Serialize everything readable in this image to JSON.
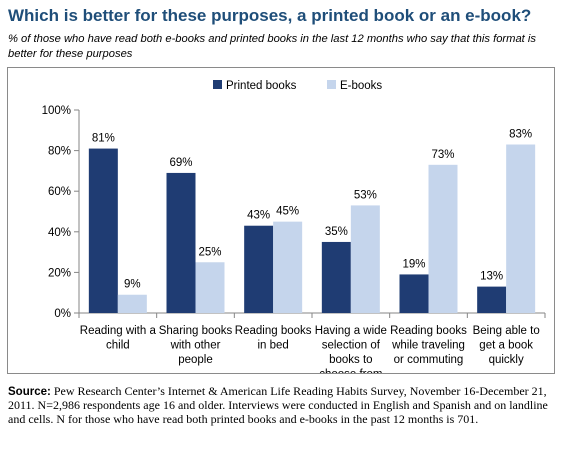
{
  "header": {
    "title": "Which is better for these purposes, a printed book or an e-book?",
    "subtitle": "% of those who have read both e-books and printed books in the last 12 months who say that this format is better for these purposes"
  },
  "chart_data": {
    "type": "bar",
    "categories": [
      [
        "Reading with a",
        "child"
      ],
      [
        "Sharing books",
        "with other",
        "people"
      ],
      [
        "Reading books",
        "in bed"
      ],
      [
        "Having a wide",
        "selection of",
        "books to",
        "choose from"
      ],
      [
        "Reading books",
        "while traveling",
        "or commuting"
      ],
      [
        "Being able to",
        "get a book",
        "quickly"
      ]
    ],
    "series": [
      {
        "name": "Printed books",
        "color": "#1f3c73",
        "values": [
          81,
          69,
          43,
          35,
          19,
          13
        ]
      },
      {
        "name": "E-books",
        "color": "#c5d5ec",
        "values": [
          9,
          25,
          45,
          53,
          73,
          83
        ]
      }
    ],
    "ylim": [
      0,
      100
    ],
    "yticks": [
      0,
      20,
      40,
      60,
      80,
      100
    ],
    "ytick_suffix": "%",
    "data_label_suffix": "%",
    "legend_position": "top-center",
    "grid": false
  },
  "source": {
    "label": "Source:",
    "text": " Pew Research Center’s Internet & American Life Reading Habits Survey, November 16-December 21, 2011. N=2,986 respondents age 16 and older. Interviews were conducted in English and Spanish and on landline and cells. N for those who have read both printed books and e-books in the past 12 months is 701."
  }
}
